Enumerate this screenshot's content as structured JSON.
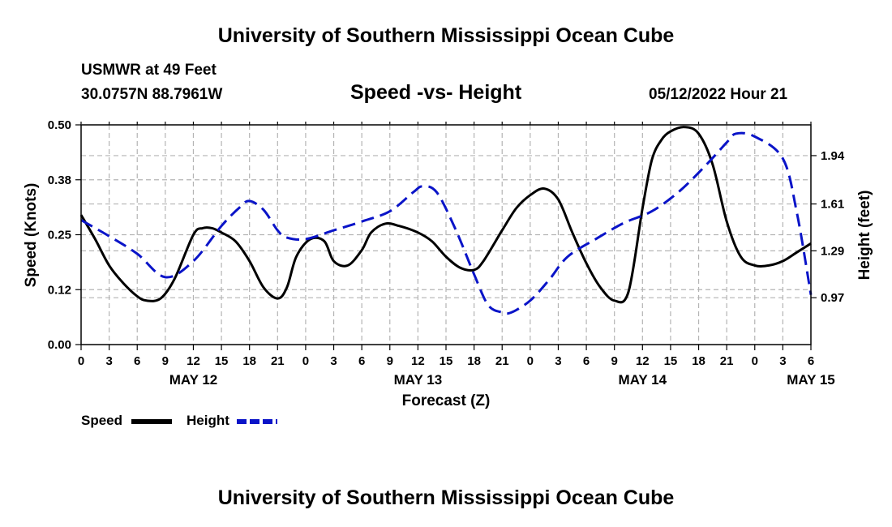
{
  "header": {
    "title": "University of Southern Mississippi Ocean Cube",
    "station": "USMWR at 49 Feet",
    "coords": "30.0757N  88.7961W",
    "chart_title": "Speed -vs- Height",
    "datetime": "05/12/2022 Hour 21"
  },
  "footer": {
    "title": "University of Southern Mississippi Ocean Cube"
  },
  "legend": {
    "speed": "Speed",
    "height": "Height"
  },
  "colors": {
    "speed": "#000000",
    "height": "#0a14c8",
    "grid": "#b4b4b4"
  },
  "chart_data": {
    "type": "line",
    "title": "Speed -vs- Height",
    "xlabel": "Forecast (Z)",
    "ylabel": "Speed (Knots)",
    "y2label": "Height (feet)",
    "xlim": [
      0,
      78
    ],
    "ylim": [
      0,
      0.5
    ],
    "y2lim": [
      0.65,
      2.15
    ],
    "x_ticks": [
      0,
      3,
      6,
      9,
      12,
      15,
      18,
      21,
      24,
      27,
      30,
      33,
      36,
      39,
      42,
      45,
      48,
      51,
      54,
      57,
      60,
      63,
      66,
      69,
      72,
      75,
      78
    ],
    "x_tick_labels": [
      "0",
      "3",
      "6",
      "9",
      "12",
      "15",
      "18",
      "21",
      "0",
      "3",
      "6",
      "9",
      "12",
      "15",
      "18",
      "21",
      "0",
      "3",
      "6",
      "9",
      "12",
      "15",
      "18",
      "21",
      "0",
      "3",
      "6"
    ],
    "y_ticks": [
      0,
      0.125,
      0.25,
      0.375,
      0.5
    ],
    "y_tick_labels": [
      "0.00",
      "0.12",
      "0.25",
      "0.38",
      "0.50"
    ],
    "y2_ticks": [
      0.97,
      1.29,
      1.61,
      1.94
    ],
    "y2_tick_labels": [
      "0.97",
      "1.29",
      "1.61",
      "1.94"
    ],
    "date_labels": [
      {
        "label": "MAY 12",
        "x": 12
      },
      {
        "label": "MAY 13",
        "x": 36
      },
      {
        "label": "MAY 14",
        "x": 60
      },
      {
        "label": "MAY 15",
        "x": 78
      }
    ],
    "series": [
      {
        "name": "Speed",
        "axis": "left",
        "style": "solid",
        "x": [
          0,
          1.5,
          3,
          4.5,
          6,
          7,
          8.5,
          10,
          12,
          13,
          14,
          15,
          16.5,
          18,
          19.5,
          21,
          22,
          23,
          24.5,
          26,
          27,
          28.5,
          30,
          31,
          32.5,
          34,
          36,
          37.5,
          39,
          40.5,
          42,
          43,
          45,
          46.5,
          48,
          49.5,
          51,
          52.5,
          54,
          55.5,
          57,
          58.5,
          60,
          61,
          62,
          63,
          64.5,
          66,
          67.5,
          69,
          70.5,
          72,
          73.5,
          75,
          76.5,
          78
        ],
        "values": [
          0.295,
          0.24,
          0.18,
          0.14,
          0.11,
          0.1,
          0.105,
          0.15,
          0.25,
          0.265,
          0.265,
          0.255,
          0.235,
          0.19,
          0.13,
          0.105,
          0.13,
          0.2,
          0.24,
          0.235,
          0.19,
          0.18,
          0.215,
          0.255,
          0.275,
          0.27,
          0.255,
          0.235,
          0.2,
          0.175,
          0.17,
          0.19,
          0.26,
          0.31,
          0.34,
          0.355,
          0.33,
          0.255,
          0.185,
          0.13,
          0.1,
          0.12,
          0.31,
          0.42,
          0.465,
          0.485,
          0.495,
          0.48,
          0.41,
          0.28,
          0.2,
          0.18,
          0.18,
          0.19,
          0.21,
          0.23
        ]
      },
      {
        "name": "Height",
        "axis": "right",
        "style": "dashed",
        "x": [
          0,
          3,
          6,
          9,
          12,
          15,
          17,
          18,
          19.5,
          21,
          22,
          24,
          27,
          30,
          33,
          35.5,
          36.5,
          38,
          40,
          42,
          43.5,
          45,
          46,
          48,
          50,
          52,
          55,
          58,
          61,
          64,
          67,
          69,
          70,
          72,
          75,
          76.5,
          78
        ],
        "values": [
          1.5,
          1.39,
          1.27,
          1.11,
          1.22,
          1.46,
          1.59,
          1.63,
          1.57,
          1.43,
          1.38,
          1.37,
          1.43,
          1.49,
          1.56,
          1.69,
          1.73,
          1.69,
          1.44,
          1.13,
          0.92,
          0.87,
          0.87,
          0.95,
          1.09,
          1.25,
          1.37,
          1.48,
          1.56,
          1.7,
          1.89,
          2.03,
          2.09,
          2.07,
          1.92,
          1.55,
          0.99
        ]
      }
    ]
  }
}
